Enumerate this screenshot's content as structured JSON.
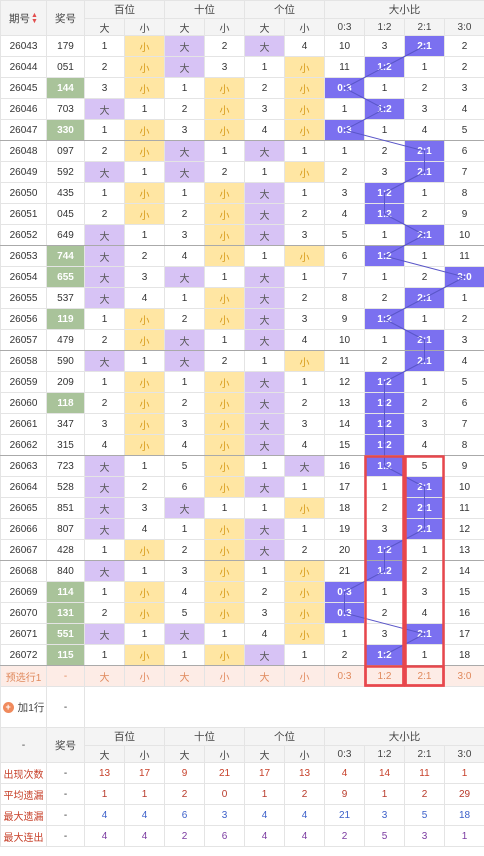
{
  "header": {
    "period_label": "期号",
    "number_label": "奖号",
    "groups": [
      "百位",
      "十位",
      "个位",
      "大小比"
    ],
    "sub": [
      "大",
      "小",
      "大",
      "小",
      "大",
      "小",
      "0:3",
      "1:2",
      "2:1",
      "3:0"
    ]
  },
  "rows": [
    {
      "p": "26043",
      "n": "179",
      "hl": false,
      "c": [
        "1",
        "小",
        "大",
        "2",
        "大",
        "4",
        "10",
        "3",
        "2:1",
        "2"
      ],
      "k": [
        "",
        "x",
        "d",
        "",
        "d",
        "",
        "",
        "",
        "r",
        ""
      ]
    },
    {
      "p": "26044",
      "n": "051",
      "hl": false,
      "c": [
        "2",
        "小",
        "大",
        "3",
        "1",
        "小",
        "11",
        "1:2",
        "1",
        "2"
      ],
      "k": [
        "",
        "x",
        "d",
        "",
        "",
        "x",
        "",
        "r",
        "",
        ""
      ]
    },
    {
      "p": "26045",
      "n": "144",
      "hl": true,
      "c": [
        "3",
        "小",
        "1",
        "小",
        "2",
        "小",
        "0:3",
        "1",
        "2",
        "3"
      ],
      "k": [
        "",
        "x",
        "",
        "x",
        "",
        "x",
        "r",
        "",
        "",
        ""
      ]
    },
    {
      "p": "26046",
      "n": "703",
      "hl": false,
      "c": [
        "大",
        "1",
        "2",
        "小",
        "3",
        "小",
        "1",
        "1:2",
        "3",
        "4"
      ],
      "k": [
        "d",
        "",
        "",
        "x",
        "",
        "x",
        "",
        "r",
        "",
        ""
      ]
    },
    {
      "p": "26047",
      "n": "330",
      "hl": true,
      "c": [
        "1",
        "小",
        "3",
        "小",
        "4",
        "小",
        "0:3",
        "1",
        "4",
        "5"
      ],
      "k": [
        "",
        "x",
        "",
        "x",
        "",
        "x",
        "r",
        "",
        "",
        ""
      ]
    },
    {
      "p": "26048",
      "n": "097",
      "hl": false,
      "c": [
        "2",
        "小",
        "大",
        "1",
        "大",
        "1",
        "1",
        "2",
        "2:1",
        "6"
      ],
      "k": [
        "",
        "x",
        "d",
        "",
        "d",
        "",
        "",
        "",
        "r",
        ""
      ]
    },
    {
      "p": "26049",
      "n": "592",
      "hl": false,
      "c": [
        "大",
        "1",
        "大",
        "2",
        "1",
        "小",
        "2",
        "3",
        "2:1",
        "7"
      ],
      "k": [
        "d",
        "",
        "d",
        "",
        "",
        "x",
        "",
        "",
        "r",
        ""
      ]
    },
    {
      "p": "26050",
      "n": "435",
      "hl": false,
      "c": [
        "1",
        "小",
        "1",
        "小",
        "大",
        "1",
        "3",
        "1:2",
        "1",
        "8"
      ],
      "k": [
        "",
        "x",
        "",
        "x",
        "d",
        "",
        "",
        "r",
        "",
        ""
      ]
    },
    {
      "p": "26051",
      "n": "045",
      "hl": false,
      "c": [
        "2",
        "小",
        "2",
        "小",
        "大",
        "2",
        "4",
        "1:2",
        "2",
        "9"
      ],
      "k": [
        "",
        "x",
        "",
        "x",
        "d",
        "",
        "",
        "r",
        "",
        ""
      ]
    },
    {
      "p": "26052",
      "n": "649",
      "hl": false,
      "c": [
        "大",
        "1",
        "3",
        "小",
        "大",
        "3",
        "5",
        "1",
        "2:1",
        "10"
      ],
      "k": [
        "d",
        "",
        "",
        "x",
        "d",
        "",
        "",
        "",
        "r",
        ""
      ]
    },
    {
      "p": "26053",
      "n": "744",
      "hl": true,
      "c": [
        "大",
        "2",
        "4",
        "小",
        "1",
        "小",
        "6",
        "1:2",
        "1",
        "11"
      ],
      "k": [
        "d",
        "",
        "",
        "x",
        "",
        "x",
        "",
        "r",
        "",
        ""
      ]
    },
    {
      "p": "26054",
      "n": "655",
      "hl": true,
      "c": [
        "大",
        "3",
        "大",
        "1",
        "大",
        "1",
        "7",
        "1",
        "2",
        "3:0"
      ],
      "k": [
        "d",
        "",
        "d",
        "",
        "d",
        "",
        "",
        "",
        "",
        "r"
      ]
    },
    {
      "p": "26055",
      "n": "537",
      "hl": false,
      "c": [
        "大",
        "4",
        "1",
        "小",
        "大",
        "2",
        "8",
        "2",
        "2:1",
        "1"
      ],
      "k": [
        "d",
        "",
        "",
        "x",
        "d",
        "",
        "",
        "",
        "r",
        ""
      ]
    },
    {
      "p": "26056",
      "n": "119",
      "hl": true,
      "c": [
        "1",
        "小",
        "2",
        "小",
        "大",
        "3",
        "9",
        "1:2",
        "1",
        "2"
      ],
      "k": [
        "",
        "x",
        "",
        "x",
        "d",
        "",
        "",
        "r",
        "",
        ""
      ]
    },
    {
      "p": "26057",
      "n": "479",
      "hl": false,
      "c": [
        "2",
        "小",
        "大",
        "1",
        "大",
        "4",
        "10",
        "1",
        "2:1",
        "3"
      ],
      "k": [
        "",
        "x",
        "d",
        "",
        "d",
        "",
        "",
        "",
        "r",
        ""
      ]
    },
    {
      "p": "26058",
      "n": "590",
      "hl": false,
      "c": [
        "大",
        "1",
        "大",
        "2",
        "1",
        "小",
        "11",
        "2",
        "2:1",
        "4"
      ],
      "k": [
        "d",
        "",
        "d",
        "",
        "",
        "x",
        "",
        "",
        "r",
        ""
      ]
    },
    {
      "p": "26059",
      "n": "209",
      "hl": false,
      "c": [
        "1",
        "小",
        "1",
        "小",
        "大",
        "1",
        "12",
        "1:2",
        "1",
        "5"
      ],
      "k": [
        "",
        "x",
        "",
        "x",
        "d",
        "",
        "",
        "r",
        "",
        ""
      ]
    },
    {
      "p": "26060",
      "n": "118",
      "hl": true,
      "c": [
        "2",
        "小",
        "2",
        "小",
        "大",
        "2",
        "13",
        "1:2",
        "2",
        "6"
      ],
      "k": [
        "",
        "x",
        "",
        "x",
        "d",
        "",
        "",
        "r",
        "",
        ""
      ]
    },
    {
      "p": "26061",
      "n": "347",
      "hl": false,
      "c": [
        "3",
        "小",
        "3",
        "小",
        "大",
        "3",
        "14",
        "1:2",
        "3",
        "7"
      ],
      "k": [
        "",
        "x",
        "",
        "x",
        "d",
        "",
        "",
        "r",
        "",
        ""
      ]
    },
    {
      "p": "26062",
      "n": "315",
      "hl": false,
      "c": [
        "4",
        "小",
        "4",
        "小",
        "大",
        "4",
        "15",
        "1:2",
        "4",
        "8"
      ],
      "k": [
        "",
        "x",
        "",
        "x",
        "d",
        "",
        "",
        "r",
        "",
        ""
      ]
    },
    {
      "p": "26063",
      "n": "723",
      "hl": false,
      "c": [
        "大",
        "1",
        "5",
        "小",
        "1",
        "大",
        "16",
        "1:2",
        "5",
        "9"
      ],
      "k": [
        "d",
        "",
        "",
        "x",
        "",
        "d",
        "",
        "r",
        "",
        ""
      ]
    },
    {
      "p": "26064",
      "n": "528",
      "hl": false,
      "c": [
        "大",
        "2",
        "6",
        "小",
        "大",
        "1",
        "17",
        "1",
        "2:1",
        "10"
      ],
      "k": [
        "d",
        "",
        "",
        "x",
        "d",
        "",
        "",
        "",
        "r",
        ""
      ]
    },
    {
      "p": "26065",
      "n": "851",
      "hl": false,
      "c": [
        "大",
        "3",
        "大",
        "1",
        "1",
        "小",
        "18",
        "2",
        "2:1",
        "11"
      ],
      "k": [
        "d",
        "",
        "d",
        "",
        "",
        "x",
        "",
        "",
        "r",
        ""
      ]
    },
    {
      "p": "26066",
      "n": "807",
      "hl": false,
      "c": [
        "大",
        "4",
        "1",
        "小",
        "大",
        "1",
        "19",
        "3",
        "2:1",
        "12"
      ],
      "k": [
        "d",
        "",
        "",
        "x",
        "d",
        "",
        "",
        "",
        "r",
        ""
      ]
    },
    {
      "p": "26067",
      "n": "428",
      "hl": false,
      "c": [
        "1",
        "小",
        "2",
        "小",
        "大",
        "2",
        "20",
        "1:2",
        "1",
        "13"
      ],
      "k": [
        "",
        "x",
        "",
        "x",
        "d",
        "",
        "",
        "r",
        "",
        ""
      ]
    },
    {
      "p": "26068",
      "n": "840",
      "hl": false,
      "c": [
        "大",
        "1",
        "3",
        "小",
        "1",
        "小",
        "21",
        "1:2",
        "2",
        "14"
      ],
      "k": [
        "d",
        "",
        "",
        "x",
        "",
        "x",
        "",
        "r",
        "",
        ""
      ]
    },
    {
      "p": "26069",
      "n": "114",
      "hl": true,
      "c": [
        "1",
        "小",
        "4",
        "小",
        "2",
        "小",
        "0:3",
        "1",
        "3",
        "15"
      ],
      "k": [
        "",
        "x",
        "",
        "x",
        "",
        "x",
        "r",
        "",
        "",
        ""
      ]
    },
    {
      "p": "26070",
      "n": "131",
      "hl": true,
      "c": [
        "2",
        "小",
        "5",
        "小",
        "3",
        "小",
        "0:3",
        "2",
        "4",
        "16"
      ],
      "k": [
        "",
        "x",
        "",
        "x",
        "",
        "x",
        "r",
        "",
        "",
        ""
      ]
    },
    {
      "p": "26071",
      "n": "551",
      "hl": true,
      "c": [
        "大",
        "1",
        "大",
        "1",
        "4",
        "小",
        "1",
        "3",
        "2:1",
        "17"
      ],
      "k": [
        "d",
        "",
        "d",
        "",
        "",
        "x",
        "",
        "",
        "r",
        ""
      ]
    },
    {
      "p": "26072",
      "n": "115",
      "hl": true,
      "c": [
        "1",
        "小",
        "1",
        "小",
        "大",
        "1",
        "2",
        "1:2",
        "1",
        "18"
      ],
      "k": [
        "",
        "x",
        "",
        "x",
        "d",
        "",
        "",
        "r",
        "",
        ""
      ]
    }
  ],
  "predict": {
    "label": "预选行1",
    "number": "-",
    "cells": [
      "大",
      "小",
      "大",
      "小",
      "大",
      "小",
      "0:3",
      "1:2",
      "2:1",
      "3:0"
    ]
  },
  "add_row": {
    "label": "加1行",
    "icon": "plus-circle-icon",
    "number": "-"
  },
  "footer_header": {
    "first": "-",
    "number_label": "奖号",
    "groups": [
      "百位",
      "十位",
      "个位",
      "大小比"
    ],
    "sub": [
      "大",
      "小",
      "大",
      "小",
      "大",
      "小",
      "0:3",
      "1:2",
      "2:1",
      "3:0"
    ]
  },
  "stats": [
    {
      "label": "出现次数",
      "n": "-",
      "v": [
        "13",
        "17",
        "9",
        "21",
        "17",
        "13",
        "4",
        "14",
        "11",
        "1"
      ]
    },
    {
      "label": "平均遗漏",
      "n": "-",
      "v": [
        "1",
        "1",
        "2",
        "0",
        "1",
        "2",
        "9",
        "1",
        "2",
        "29"
      ]
    },
    {
      "label": "最大遗漏",
      "n": "-",
      "v": [
        "4",
        "4",
        "6",
        "3",
        "4",
        "4",
        "21",
        "3",
        "5",
        "18"
      ]
    },
    {
      "label": "最大连出",
      "n": "-",
      "v": [
        "4",
        "4",
        "2",
        "6",
        "4",
        "4",
        "2",
        "5",
        "3",
        "1"
      ]
    }
  ],
  "colors": {
    "highlight_number": "#a9c39a",
    "da": "#d7c3f5",
    "xiao": "#ffe6a3",
    "ratio": "#7b70f0",
    "marker_box": "#e8474c"
  }
}
